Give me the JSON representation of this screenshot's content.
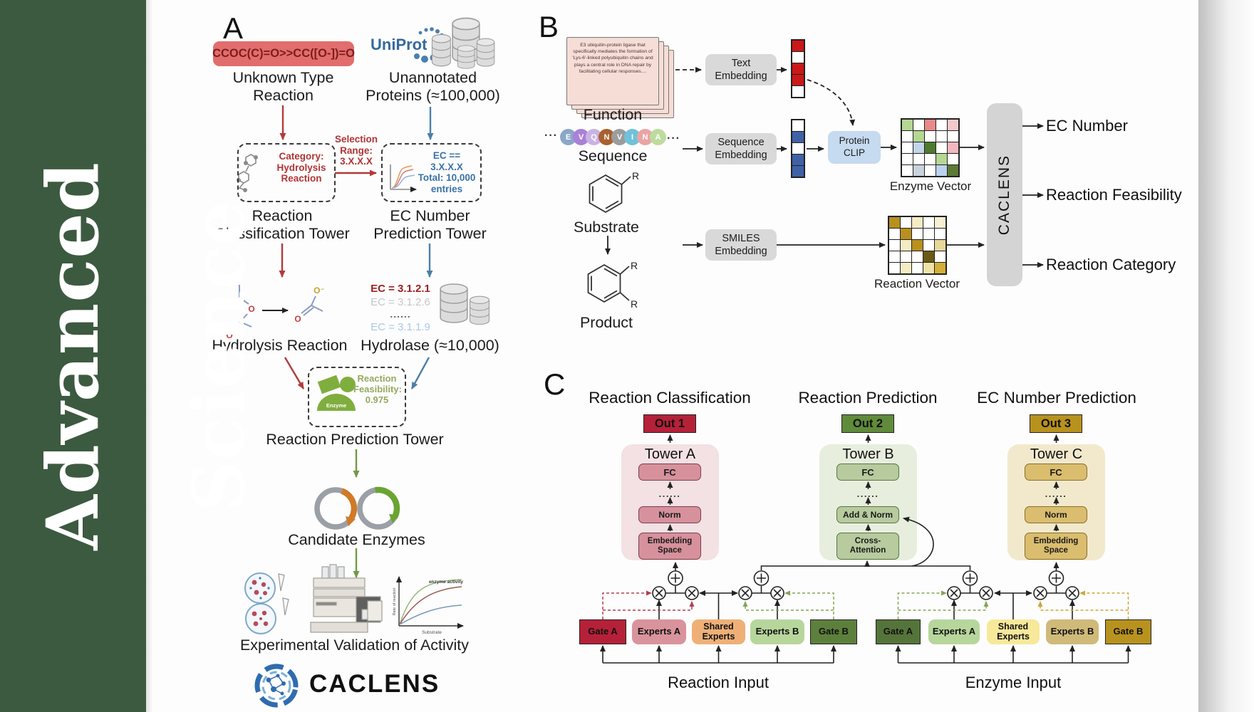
{
  "journal": {
    "name": "Advanced Science"
  },
  "colors": {
    "sidebar_green": "#3c5a40",
    "arrow_red": "#b23a3a",
    "arrow_blue": "#4a7fa8",
    "arrow_green": "#6f9a44",
    "out1_red": "#b52138",
    "out2_green": "#5f8b3a",
    "out3_gold": "#b8921e",
    "uniprot_blue": "#36699e"
  },
  "panelA": {
    "label": "A",
    "smiles_reaction": "CCOC(C)=O>>CC([O-])=O",
    "unknown_type": "Unknown Type\nReaction",
    "uniprot": "UniProt",
    "unannotated": "Unannotated\nProteins (≈100,000)",
    "category": "Category:\nHydrolysis\nReaction",
    "selection": "Selection\nRange:\n3.X.X.X",
    "ec_filter": "EC == 3.X.X.X\nTotal: 10,000\nentries",
    "tower_classification": "Reaction\nClassification Tower",
    "tower_ec": "EC Number\nPrediction Tower",
    "hydrolysis_reaction": "Hydrolysis Reaction",
    "ec_list": [
      "EC = 3.1.2.1",
      "EC = 3.1.2.6",
      "......",
      "EC = 3.1.1.9"
    ],
    "hydrolase": "Hydrolase (≈10,000)",
    "enzyme_icon_label": "Enzyme",
    "feasibility": "Reaction\nFeasibility:\n0.975",
    "tower_prediction": "Reaction Prediction Tower",
    "candidate_enzymes": "Candidate Enzymes",
    "validation": "Experimental Validation of Activity",
    "wordmark": "CACLENS",
    "atoms": {
      "o1": "O",
      "o2": "O",
      "o3": "O",
      "o_minus": "O⁻"
    },
    "mini_chart": {
      "annotation": "enzyme activity",
      "ylabel": "Rate of reaction",
      "xlabel": "Substrate"
    }
  },
  "panelB": {
    "label": "B",
    "function_card_text": "E3 ubiquitin-protein ligase that specifically mediates the formation of 'Lys-6'-linked polyubiquitin chains and plays a central role in DNA repair by facilitating cellular responses....",
    "function_label": "Function",
    "sequence_label": "Sequence",
    "ellipsis": "···",
    "residues": [
      {
        "letter": "E",
        "color": "#8ba7c7"
      },
      {
        "letter": "V",
        "color": "#a981d6"
      },
      {
        "letter": "Q",
        "color": "#c9b3e4"
      },
      {
        "letter": "N",
        "color": "#a8602e"
      },
      {
        "letter": "V",
        "color": "#9c9c9c"
      },
      {
        "letter": "I",
        "color": "#6fc2da"
      },
      {
        "letter": "N",
        "color": "#eaa4a4"
      },
      {
        "letter": "A",
        "color": "#bedb9e"
      }
    ],
    "substrate_label": "Substrate",
    "product_label": "Product",
    "r_label": "R",
    "text_embedding": "Text\nEmbedding",
    "sequence_embedding": "Sequence\nEmbedding",
    "smiles_embedding": "SMILES\nEmbedding",
    "protein_clip": "Protein\nCLIP",
    "enzyme_vector_label": "Enzyme Vector",
    "reaction_vector_label": "Reaction Vector",
    "caclens": "CACLENS",
    "outputs": [
      "EC Number",
      "Reaction Feasibility",
      "Reaction Category"
    ],
    "text_vector_cells": [
      "#cc1818",
      "#ffffff",
      "#cc1818",
      "#cc1818",
      "#ffffff"
    ],
    "sequence_vector_cells": [
      "#ffffff",
      "#3f62a7",
      "#ffffff",
      "#3f62a7",
      "#3f62a7"
    ],
    "enzyme_matrix": [
      [
        "#b5d793",
        "#ffffff",
        "#e88a8a",
        "#ffffff",
        "#f3c9cd"
      ],
      [
        "#ffffff",
        "#b5d793",
        "#ffffff",
        "#ffffff",
        "#ffffff"
      ],
      [
        "#ffffff",
        "#c3d5ea",
        "#4f7a2e",
        "#ffffff",
        "#f3b8bd"
      ],
      [
        "#ffffff",
        "#ffffff",
        "#ffffff",
        "#b5d793",
        "#ffffff"
      ],
      [
        "#ffffff",
        "#c9d3dd",
        "#ffffff",
        "#bcd2ef",
        "#5d7a33"
      ]
    ],
    "reaction_matrix": [
      [
        "#b8901f",
        "#ffffff",
        "#f5ecc4",
        "#ffffff",
        "#f7f0d2"
      ],
      [
        "#ffffff",
        "#b8901f",
        "#ffffff",
        "#ffffff",
        "#ffffff"
      ],
      [
        "#ffffff",
        "#f5ecc4",
        "#b8901f",
        "#ffffff",
        "#e8d79a"
      ],
      [
        "#ffffff",
        "#ffffff",
        "#ffffff",
        "#6b5a14",
        "#ffffff"
      ],
      [
        "#ffffff",
        "#f5ecc4",
        "#ffffff",
        "#f0e3a8",
        "#d4af37"
      ]
    ]
  },
  "panelC": {
    "label": "C",
    "columns": [
      "Reaction Classification",
      "Reaction Prediction",
      "EC Number Prediction"
    ],
    "towers": [
      {
        "out": "Out 1",
        "name": "Tower A",
        "fc": "FC",
        "dots": "......",
        "mid": "Norm",
        "bottom": "Embedding\nSpace"
      },
      {
        "out": "Out 2",
        "name": "Tower B",
        "fc": "FC",
        "dots": "......",
        "mid": "Add & Norm",
        "bottom": "Cross-\nAttention"
      },
      {
        "out": "Out 3",
        "name": "Tower C",
        "fc": "FC",
        "dots": "......",
        "mid": "Norm",
        "bottom": "Embedding\nSpace"
      }
    ],
    "moe_left": {
      "gate_a": "Gate A",
      "experts_a": "Experts A",
      "shared": "Shared\nExperts",
      "experts_b": "Experts B",
      "gate_b": "Gate B",
      "input": "Reaction Input"
    },
    "moe_right": {
      "gate_a": "Gate A",
      "experts_a": "Experts A",
      "shared": "Shared\nExperts",
      "experts_b": "Experts B",
      "gate_b": "Gate B",
      "input": "Enzyme Input"
    }
  }
}
